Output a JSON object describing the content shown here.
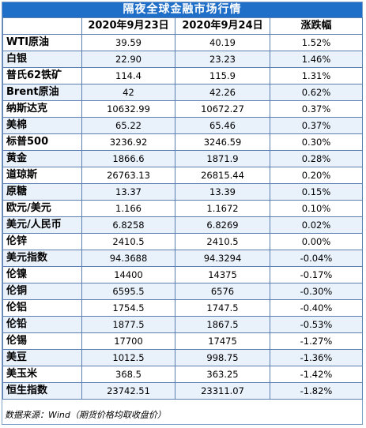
{
  "title": "隔夜全球金融市场行情",
  "headers": [
    "",
    "2020年9月23日",
    "2020年9月24日",
    "涨跌幅"
  ],
  "rows": [
    {
      "name": "WTI原油",
      "d1": "39.59",
      "d2": "40.19",
      "chg": "1.52%"
    },
    {
      "name": "白银",
      "d1": "22.90",
      "d2": "23.23",
      "chg": "1.46%"
    },
    {
      "name": "普氏62铁矿",
      "d1": "114.4",
      "d2": "115.9",
      "chg": "1.31%"
    },
    {
      "name": "Brent原油",
      "d1": "42",
      "d2": "42.26",
      "chg": "0.62%"
    },
    {
      "name": "纳斯达克",
      "d1": "10632.99",
      "d2": "10672.27",
      "chg": "0.37%"
    },
    {
      "name": "美棉",
      "d1": "65.22",
      "d2": "65.46",
      "chg": "0.37%"
    },
    {
      "name": "标普500",
      "d1": "3236.92",
      "d2": "3246.59",
      "chg": "0.30%"
    },
    {
      "name": "黄金",
      "d1": "1866.6",
      "d2": "1871.9",
      "chg": "0.28%"
    },
    {
      "name": "道琼斯",
      "d1": "26763.13",
      "d2": "26815.44",
      "chg": "0.20%"
    },
    {
      "name": "原糖",
      "d1": "13.37",
      "d2": "13.39",
      "chg": "0.15%"
    },
    {
      "name": "欧元/美元",
      "d1": "1.166",
      "d2": "1.1672",
      "chg": "0.10%"
    },
    {
      "name": "美元/人民币",
      "d1": "6.8258",
      "d2": "6.8269",
      "chg": "0.02%"
    },
    {
      "name": "伦锌",
      "d1": "2410.5",
      "d2": "2410.5",
      "chg": "0.00%"
    },
    {
      "name": "美元指数",
      "d1": "94.3688",
      "d2": "94.3294",
      "chg": "-0.04%"
    },
    {
      "name": "伦镍",
      "d1": "14400",
      "d2": "14375",
      "chg": "-0.17%"
    },
    {
      "name": "伦铜",
      "d1": "6595.5",
      "d2": "6576",
      "chg": "-0.30%"
    },
    {
      "name": "伦铝",
      "d1": "1754.5",
      "d2": "1747.5",
      "chg": "-0.40%"
    },
    {
      "name": "伦铅",
      "d1": "1877.5",
      "d2": "1867.5",
      "chg": "-0.53%"
    },
    {
      "name": "伦锡",
      "d1": "17700",
      "d2": "17475",
      "chg": "-1.27%"
    },
    {
      "name": "美豆",
      "d1": "1012.5",
      "d2": "998.75",
      "chg": "-1.36%"
    },
    {
      "name": "美玉米",
      "d1": "368.5",
      "d2": "363.25",
      "chg": "-1.42%"
    },
    {
      "name": "恒生指数",
      "d1": "23742.51",
      "d2": "23311.07",
      "chg": "-1.82%"
    }
  ],
  "footer": "数据来源：Wind（期货价格均取收盘价）",
  "colors": {
    "title_bg": "#1f6fc9",
    "alt_row": "#e9f1fb",
    "border": "#5a7fb0"
  }
}
